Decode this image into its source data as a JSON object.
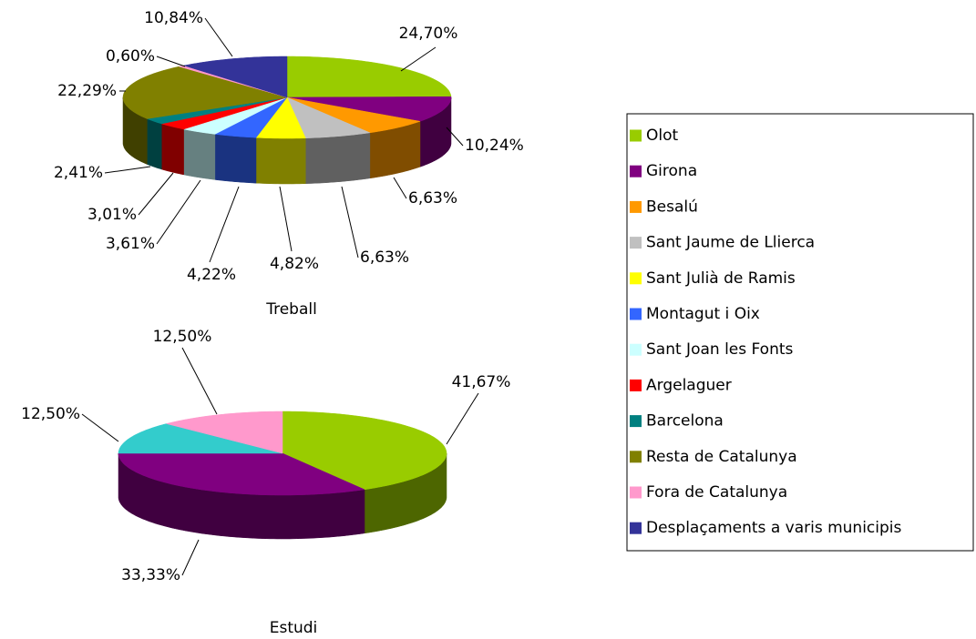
{
  "chart_data": [
    {
      "type": "pie",
      "title": "Treball",
      "categories": [
        "Olot",
        "Girona",
        "Besalú",
        "Sant Jaume de Llierca",
        "Sant Julià de Ramis",
        "Montagut i Oix",
        "Sant Joan les Fonts",
        "Argelaguer",
        "Barcelona",
        "Resta de Catalunya",
        "Fora de Catalunya",
        "Desplaçaments a varis municipis"
      ],
      "values": [
        24.7,
        10.24,
        6.63,
        6.63,
        4.82,
        4.22,
        3.61,
        3.01,
        2.41,
        22.29,
        0.6,
        10.84
      ],
      "value_labels": [
        "24,70%",
        "10,24%",
        "6,63%",
        "6,63%",
        "4,82%",
        "4,22%",
        "3,61%",
        "3,01%",
        "2,41%",
        "22,29%",
        "0,60%",
        "10,84%"
      ],
      "colors": [
        "#99cc00",
        "#800080",
        "#ff9900",
        "#c0c0c0",
        "#ffff00",
        "#3366ff",
        "#ccffff",
        "#ff0000",
        "#008080",
        "#808000",
        "#ff99cc",
        "#333399"
      ],
      "legend": "right"
    },
    {
      "type": "pie",
      "title": "Estudi",
      "values": [
        41.67,
        33.33,
        null,
        null,
        null,
        null,
        null,
        null,
        12.5,
        null,
        12.5,
        null
      ],
      "value_labels": [
        "41,67%",
        "33,33%",
        null,
        null,
        null,
        null,
        null,
        null,
        "12,50%",
        null,
        "12,50%",
        null
      ],
      "colors": [
        "#99cc00",
        "#800080",
        null,
        null,
        null,
        null,
        null,
        null,
        "#33cccc",
        null,
        "#ff99cc",
        null
      ]
    }
  ]
}
